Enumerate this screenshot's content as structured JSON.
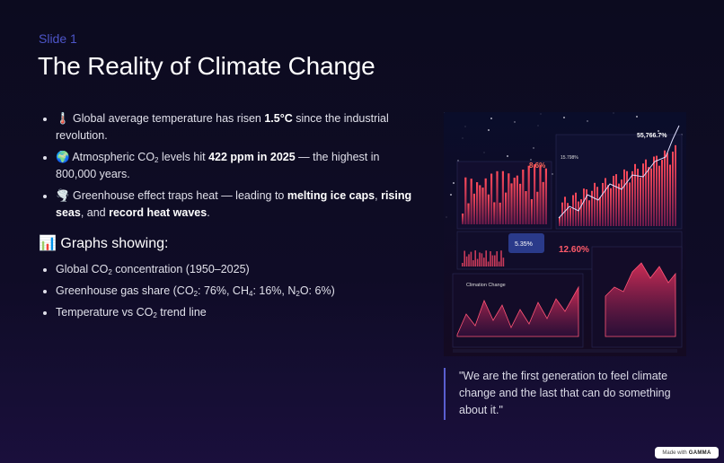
{
  "slide_label": "Slide 1",
  "title": "The Reality of Climate Change",
  "bullets": [
    [
      {
        "text": "🌡️ Global average temperature has risen "
      },
      {
        "bold": "1.5°C"
      },
      {
        "text": " since the industrial revolution."
      }
    ],
    [
      {
        "text": "🌍 Atmospheric CO"
      },
      {
        "sub": "2"
      },
      {
        "text": " levels hit "
      },
      {
        "bold": "422 ppm in 2025"
      },
      {
        "text": " — the highest in 800,000 years."
      }
    ],
    [
      {
        "text": "🌪️ Greenhouse effect traps heat — leading to "
      },
      {
        "bold": "melting ice caps"
      },
      {
        "text": ", "
      },
      {
        "bold": "rising seas"
      },
      {
        "text": ", and "
      },
      {
        "bold": "record heat waves"
      },
      {
        "text": "."
      }
    ]
  ],
  "section_heading": "📊 Graphs showing:",
  "graph_bullets": [
    [
      {
        "text": "Global CO"
      },
      {
        "sub": "2"
      },
      {
        "text": " concentration (1950–2025)"
      }
    ],
    [
      {
        "text": "Greenhouse gas share (CO"
      },
      {
        "sub": "2"
      },
      {
        "text": ": 76%, CH"
      },
      {
        "sub": "4"
      },
      {
        "text": ": 16%, N"
      },
      {
        "sub": "2"
      },
      {
        "text": "O: 6%)"
      }
    ],
    [
      {
        "text": "Temperature vs CO"
      },
      {
        "sub": "2"
      },
      {
        "text": " trend line"
      }
    ]
  ],
  "image_labels": [
    "8.6%",
    "15.798%",
    "55,766.7%",
    "5.35%",
    "12.60%",
    "Climation Change"
  ],
  "quote": "\"We are the first generation to feel climate change and the last that can do something about it.\"",
  "badge": {
    "prefix": "Made with",
    "brand": "GAMMA"
  }
}
